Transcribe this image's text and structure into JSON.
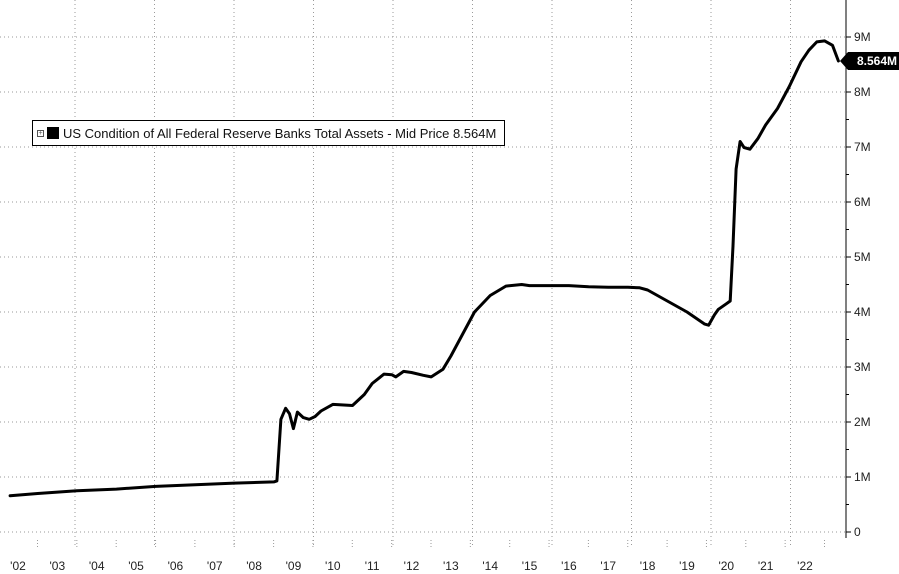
{
  "chart_data": {
    "type": "line",
    "legend": {
      "label": "US Condition of All Federal Reserve Banks Total Assets - Mid Price",
      "value": "8.564M",
      "placement": "top-left"
    },
    "last_value_label": "8.564M",
    "line_color": "#000000",
    "grid": true,
    "x_ticks": [
      "'02",
      "'03",
      "'04",
      "'05",
      "'06",
      "'07",
      "'08",
      "'09",
      "'10",
      "'11",
      "'12",
      "'13",
      "'14",
      "'15",
      "'16",
      "'17",
      "'18",
      "'19",
      "'20",
      "'21",
      "'22"
    ],
    "y_ticks": [
      {
        "value": 0,
        "label": "0"
      },
      {
        "value": 1,
        "label": "1M"
      },
      {
        "value": 2,
        "label": "2M"
      },
      {
        "value": 3,
        "label": "3M"
      },
      {
        "value": 4,
        "label": "4M"
      },
      {
        "value": 5,
        "label": "5M"
      },
      {
        "value": 6,
        "label": "6M"
      },
      {
        "value": 7,
        "label": "7M"
      },
      {
        "value": 8,
        "label": "8M"
      },
      {
        "value": 9,
        "label": "9M"
      }
    ],
    "ylim": [
      0,
      9.5
    ],
    "xlim": [
      2001.8,
      2022.95
    ],
    "series": [
      {
        "x": [
          2001.8,
          2002.5,
          2003.5,
          2004.5,
          2005.5,
          2006.5,
          2007.5,
          2008.5,
          2008.58,
          2008.68,
          2008.8,
          2008.9,
          2009.0,
          2009.1,
          2009.25,
          2009.4,
          2009.55,
          2009.7,
          2010.0,
          2010.5,
          2010.8,
          2011.0,
          2011.3,
          2011.5,
          2011.6,
          2011.8,
          2012.0,
          2012.3,
          2012.5,
          2012.8,
          2013.0,
          2013.3,
          2013.6,
          2014.0,
          2014.4,
          2014.8,
          2015.0,
          2015.5,
          2016.0,
          2016.5,
          2017.0,
          2017.5,
          2017.8,
          2018.0,
          2018.5,
          2019.0,
          2019.45,
          2019.55,
          2019.7,
          2019.8,
          2020.0,
          2020.1,
          2020.17,
          2020.25,
          2020.35,
          2020.45,
          2020.6,
          2020.8,
          2021.0,
          2021.3,
          2021.6,
          2021.9,
          2022.1,
          2022.3,
          2022.5,
          2022.7,
          2022.85
        ],
        "values": [
          0.66,
          0.7,
          0.75,
          0.78,
          0.83,
          0.86,
          0.89,
          0.91,
          0.93,
          2.05,
          2.25,
          2.15,
          1.88,
          2.18,
          2.08,
          2.05,
          2.1,
          2.2,
          2.32,
          2.3,
          2.5,
          2.7,
          2.87,
          2.86,
          2.82,
          2.92,
          2.9,
          2.85,
          2.82,
          2.96,
          3.2,
          3.6,
          4.0,
          4.3,
          4.47,
          4.5,
          4.48,
          4.48,
          4.48,
          4.46,
          4.45,
          4.45,
          4.44,
          4.4,
          4.2,
          4.0,
          3.78,
          3.76,
          3.95,
          4.05,
          4.15,
          4.2,
          5.2,
          6.6,
          7.1,
          6.99,
          6.96,
          7.15,
          7.4,
          7.7,
          8.1,
          8.55,
          8.76,
          8.91,
          8.93,
          8.85,
          8.564
        ]
      }
    ]
  }
}
